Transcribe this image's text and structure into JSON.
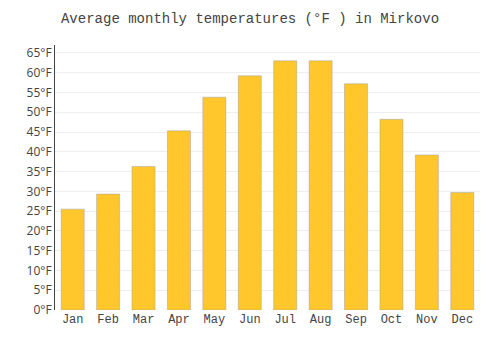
{
  "chart_data": {
    "type": "bar",
    "title": "Average monthly temperatures (°F ) in Mirkovo",
    "categories": [
      "Jan",
      "Feb",
      "Mar",
      "Apr",
      "May",
      "Jun",
      "Jul",
      "Aug",
      "Sep",
      "Oct",
      "Nov",
      "Dec"
    ],
    "values": [
      25.5,
      29.3,
      36.3,
      45.3,
      53.8,
      59.2,
      63.0,
      63.0,
      57.2,
      48.2,
      39.2,
      29.7
    ],
    "color": "#FFC72C",
    "ylim": [
      0,
      67
    ],
    "yticks": [
      {
        "value": 0,
        "label": "0°F"
      },
      {
        "value": 5,
        "label": "5°F"
      },
      {
        "value": 10,
        "label": "10°F"
      },
      {
        "value": 15,
        "label": "15°F"
      },
      {
        "value": 20,
        "label": "20°F"
      },
      {
        "value": 25,
        "label": "25°F"
      },
      {
        "value": 30,
        "label": "30°F"
      },
      {
        "value": 35,
        "label": "35°F"
      },
      {
        "value": 40,
        "label": "40°F"
      },
      {
        "value": 45,
        "label": "45°F"
      },
      {
        "value": 50,
        "label": "50°F"
      },
      {
        "value": 55,
        "label": "55°F"
      },
      {
        "value": 60,
        "label": "60°F"
      },
      {
        "value": 65,
        "label": "65°F"
      }
    ],
    "grid": true
  }
}
